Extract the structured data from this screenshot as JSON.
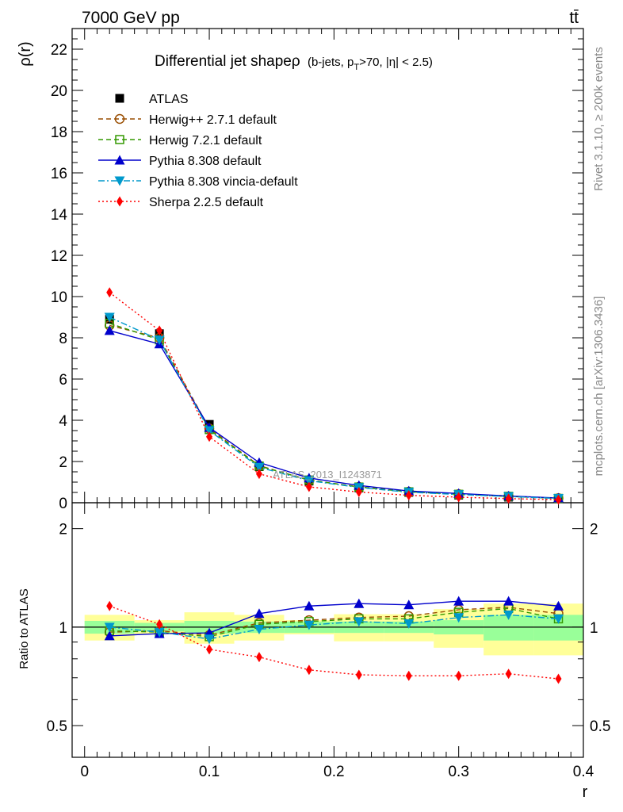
{
  "header": {
    "left_title": "7000 GeV pp",
    "right_title": "tt̄",
    "side_rivet": "Rivet 3.1.10, ≥ 200k events",
    "side_mcplots": "mcplots.cern.ch [arXiv:1306.3436]",
    "watermark": "ATLAS_2013_I1243871"
  },
  "chart_data": [
    {
      "type": "line",
      "title": "Differential jet shapeρ",
      "title_suffix": "(b-jets, p",
      "title_sub": "T",
      "title_tail": ">70, |η| < 2.5)",
      "ylabel": "ρ(r)",
      "xlim": [
        -0.01,
        0.4
      ],
      "ylim": [
        0,
        23
      ],
      "y_ticks": [
        0,
        2,
        4,
        6,
        8,
        10,
        12,
        14,
        16,
        18,
        20,
        22
      ],
      "x": [
        0.02,
        0.06,
        0.1,
        0.14,
        0.18,
        0.22,
        0.26,
        0.3,
        0.34,
        0.38
      ],
      "legend_position": "top-left",
      "series": [
        {
          "name": "ATLAS",
          "color": "#000000",
          "marker": "square-filled",
          "style": "none",
          "values": [
            8.9,
            8.2,
            3.8,
            1.75,
            1.05,
            0.72,
            0.5,
            0.37,
            0.27,
            0.2
          ]
        },
        {
          "name": "Herwig++ 2.7.1 default",
          "color": "#994d00",
          "marker": "circle-open",
          "style": "dashed",
          "values": [
            8.6,
            8.0,
            3.6,
            1.8,
            1.1,
            0.77,
            0.54,
            0.42,
            0.31,
            0.22
          ]
        },
        {
          "name": "Herwig 7.2.1 default",
          "color": "#339900",
          "marker": "square-open",
          "style": "dashed",
          "values": [
            8.7,
            7.9,
            3.55,
            1.78,
            1.1,
            0.76,
            0.53,
            0.41,
            0.31,
            0.21
          ]
        },
        {
          "name": "Pythia 8.308 default",
          "color": "#0000cc",
          "marker": "triangle-up",
          "style": "solid",
          "values": [
            8.35,
            7.7,
            3.65,
            1.95,
            1.2,
            0.84,
            0.57,
            0.45,
            0.33,
            0.23
          ]
        },
        {
          "name": "Pythia 8.308 vincia-default",
          "color": "#0099cc",
          "marker": "triangle-down",
          "style": "dashdot",
          "values": [
            9.0,
            7.9,
            3.5,
            1.72,
            1.07,
            0.74,
            0.51,
            0.4,
            0.3,
            0.21
          ]
        },
        {
          "name": "Sherpa 2.2.5 default",
          "color": "#ff0000",
          "marker": "diamond",
          "style": "dotted",
          "values": [
            10.2,
            8.35,
            3.2,
            1.4,
            0.77,
            0.52,
            0.36,
            0.27,
            0.2,
            0.15
          ]
        }
      ]
    },
    {
      "type": "line",
      "ylabel": "Ratio to ATLAS",
      "xlabel": "r",
      "xlim": [
        -0.01,
        0.4
      ],
      "ylim": [
        0.4,
        2.4
      ],
      "y_scale": "log",
      "y_ticks": [
        0.5,
        1,
        2
      ],
      "x_ticks": [
        0,
        0.1,
        0.2,
        0.3,
        0.4
      ],
      "x": [
        0.02,
        0.06,
        0.1,
        0.14,
        0.18,
        0.22,
        0.26,
        0.3,
        0.34,
        0.38
      ],
      "bands": {
        "bin_edges": [
          0.0,
          0.04,
          0.08,
          0.12,
          0.16,
          0.2,
          0.24,
          0.28,
          0.32,
          0.36,
          0.4
        ],
        "stat_lo": [
          0.955,
          0.97,
          0.955,
          0.96,
          0.96,
          0.96,
          0.96,
          0.95,
          0.91,
          0.91
        ],
        "stat_hi": [
          1.045,
          1.03,
          1.045,
          1.04,
          1.04,
          1.04,
          1.04,
          1.05,
          1.09,
          1.09
        ],
        "total_lo": [
          0.91,
          0.95,
          0.89,
          0.91,
          0.95,
          0.905,
          0.905,
          0.865,
          0.82,
          0.82
        ],
        "total_hi": [
          1.09,
          1.05,
          1.11,
          1.09,
          1.05,
          1.095,
          1.095,
          1.135,
          1.18,
          1.18
        ],
        "stat_color": "#99ff99",
        "total_color": "#ffff99"
      },
      "series": [
        {
          "name": "Herwig++ 2.7.1 default",
          "color": "#994d00",
          "marker": "circle-open",
          "style": "dashed",
          "values": [
            0.965,
            0.975,
            0.945,
            1.03,
            1.05,
            1.07,
            1.08,
            1.13,
            1.15,
            1.1
          ]
        },
        {
          "name": "Herwig 7.2.1 default",
          "color": "#339900",
          "marker": "square-open",
          "style": "dashed",
          "values": [
            0.975,
            0.965,
            0.935,
            1.02,
            1.04,
            1.06,
            1.06,
            1.11,
            1.14,
            1.06
          ]
        },
        {
          "name": "Pythia 8.308 default",
          "color": "#0000cc",
          "marker": "triangle-up",
          "style": "solid",
          "values": [
            0.94,
            0.955,
            0.96,
            1.1,
            1.16,
            1.18,
            1.17,
            1.2,
            1.2,
            1.16
          ]
        },
        {
          "name": "Pythia 8.308 vincia-default",
          "color": "#0099cc",
          "marker": "triangle-down",
          "style": "dashdot",
          "values": [
            1.0,
            0.965,
            0.92,
            0.985,
            1.015,
            1.04,
            1.025,
            1.07,
            1.09,
            1.06
          ]
        },
        {
          "name": "Sherpa 2.2.5 default",
          "color": "#ff0000",
          "marker": "diamond",
          "style": "dotted",
          "values": [
            1.16,
            1.02,
            0.855,
            0.81,
            0.74,
            0.715,
            0.71,
            0.71,
            0.72,
            0.695
          ]
        }
      ]
    }
  ]
}
